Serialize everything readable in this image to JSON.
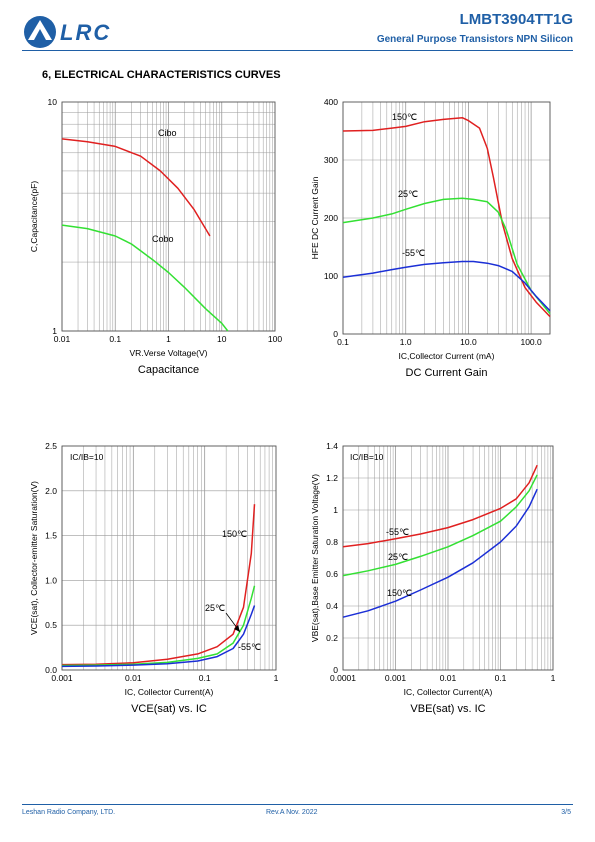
{
  "header": {
    "logo_text": "LRC",
    "part_number": "LMBT3904TT1G",
    "subtitle": "General Purpose Transistors NPN Silicon"
  },
  "section_title": "6, ELECTRICAL CHARACTERISTICS CURVES",
  "footer": {
    "company": "Leshan Radio Company, LTD.",
    "revision": "Rev.A   Nov.  2022",
    "page": "3/5"
  },
  "colors": {
    "brand": "#1f5fa6",
    "red": "#e02020",
    "green": "#33e033",
    "blue": "#1b2fd6"
  },
  "chart_data": [
    {
      "type": "line",
      "caption": "Capacitance",
      "xlabel": "VR.Verse Voltage(V)",
      "ylabel": "C,Capacitance(pF)",
      "xscale": "log",
      "yscale": "log",
      "xlim": [
        0.01,
        100
      ],
      "ylim": [
        1,
        10
      ],
      "xticks": [
        "0.01",
        "0.1",
        "1",
        "10",
        "100"
      ],
      "yticks": [
        "1",
        "10"
      ],
      "series": [
        {
          "name": "Cibo",
          "color": "red",
          "x": [
            0.01,
            0.03,
            0.1,
            0.3,
            0.7,
            1.5,
            3,
            6
          ],
          "y": [
            6.9,
            6.7,
            6.4,
            5.8,
            5.0,
            4.2,
            3.4,
            2.6
          ]
        },
        {
          "name": "Cobo",
          "color": "green",
          "x": [
            0.01,
            0.03,
            0.1,
            0.2,
            0.5,
            1,
            2,
            5,
            10,
            13
          ],
          "y": [
            2.9,
            2.8,
            2.6,
            2.4,
            2.05,
            1.8,
            1.55,
            1.25,
            1.08,
            1.0
          ]
        }
      ]
    },
    {
      "type": "line",
      "caption": "DC Current Gain",
      "xlabel": "IC,Collector Current (mA)",
      "ylabel": "HFE DC Current Gain",
      "xscale": "log",
      "yscale": "linear",
      "xlim": [
        0.1,
        200
      ],
      "ylim": [
        0,
        400
      ],
      "xticks": [
        "0.1",
        "1.0",
        "10.0",
        "100.0"
      ],
      "yticks": [
        "0",
        "100",
        "200",
        "300",
        "400"
      ],
      "series": [
        {
          "name": "150℃",
          "color": "red",
          "x": [
            0.1,
            0.3,
            0.6,
            1,
            2,
            4,
            8,
            10,
            15,
            20,
            25,
            35,
            50,
            80,
            120,
            200
          ],
          "y": [
            350,
            351,
            355,
            358,
            366,
            370,
            373,
            368,
            355,
            320,
            270,
            190,
            130,
            80,
            55,
            30
          ]
        },
        {
          "name": "25℃",
          "color": "green",
          "x": [
            0.1,
            0.3,
            0.6,
            1,
            2,
            4,
            8,
            12,
            20,
            30,
            40,
            60,
            100,
            200
          ],
          "y": [
            192,
            200,
            207,
            215,
            225,
            232,
            234,
            232,
            228,
            210,
            180,
            120,
            75,
            35
          ]
        },
        {
          "name": "-55℃",
          "color": "blue",
          "x": [
            0.1,
            0.3,
            0.6,
            1,
            2,
            4,
            8,
            12,
            20,
            30,
            50,
            80,
            120,
            200
          ],
          "y": [
            98,
            105,
            111,
            115,
            120,
            123,
            125,
            125,
            122,
            118,
            108,
            88,
            65,
            40
          ]
        }
      ]
    },
    {
      "type": "line",
      "caption": "VCE(sat) vs. IC",
      "xlabel": "IC, Collector Current(A)",
      "ylabel": "VCE(sat), Collector-emitter Saturation(V)",
      "annotation": "IC/IB=10",
      "xscale": "log",
      "yscale": "linear",
      "xlim": [
        0.001,
        1
      ],
      "ylim": [
        0,
        2.5
      ],
      "xticks": [
        "0.001",
        "0.01",
        "0.1",
        "1"
      ],
      "yticks": [
        "0.0",
        "0.5",
        "1.0",
        "1.5",
        "2.0",
        "2.5"
      ],
      "series": [
        {
          "name": "150℃",
          "color": "red",
          "x": [
            0.001,
            0.003,
            0.01,
            0.03,
            0.08,
            0.15,
            0.25,
            0.35,
            0.45,
            0.5
          ],
          "y": [
            0.06,
            0.065,
            0.08,
            0.12,
            0.18,
            0.26,
            0.4,
            0.7,
            1.3,
            1.85
          ]
        },
        {
          "name": "25℃",
          "color": "green",
          "x": [
            0.001,
            0.003,
            0.01,
            0.03,
            0.08,
            0.15,
            0.25,
            0.35,
            0.45,
            0.5
          ],
          "y": [
            0.05,
            0.055,
            0.065,
            0.085,
            0.13,
            0.18,
            0.3,
            0.5,
            0.8,
            0.94
          ]
        },
        {
          "name": "-55℃",
          "color": "blue",
          "x": [
            0.001,
            0.003,
            0.01,
            0.03,
            0.08,
            0.15,
            0.25,
            0.35,
            0.45,
            0.5
          ],
          "y": [
            0.04,
            0.045,
            0.055,
            0.07,
            0.1,
            0.15,
            0.24,
            0.4,
            0.62,
            0.72
          ]
        }
      ]
    },
    {
      "type": "line",
      "caption": "VBE(sat) vs. IC",
      "xlabel": "IC, Collector Current(A)",
      "ylabel": "VBE(sat),Base Emitter Saturation Voltage(V)",
      "annotation": "IC/IB=10",
      "xscale": "log",
      "yscale": "linear",
      "xlim": [
        0.0001,
        1
      ],
      "ylim": [
        0,
        1.4
      ],
      "xticks": [
        "0.0001",
        "0.001",
        "0.01",
        "0.1",
        "1"
      ],
      "yticks": [
        "0",
        "0.2",
        "0.4",
        "0.6",
        "0.8",
        "1",
        "1.2",
        "1.4"
      ],
      "series": [
        {
          "name": "-55℃",
          "color": "red",
          "x": [
            0.0001,
            0.0003,
            0.001,
            0.003,
            0.01,
            0.03,
            0.1,
            0.2,
            0.35,
            0.5
          ],
          "y": [
            0.77,
            0.79,
            0.82,
            0.85,
            0.89,
            0.94,
            1.01,
            1.07,
            1.17,
            1.28
          ]
        },
        {
          "name": "25℃",
          "color": "green",
          "x": [
            0.0001,
            0.0003,
            0.001,
            0.003,
            0.01,
            0.03,
            0.1,
            0.2,
            0.35,
            0.5
          ],
          "y": [
            0.59,
            0.62,
            0.66,
            0.71,
            0.77,
            0.84,
            0.93,
            1.02,
            1.12,
            1.22
          ]
        },
        {
          "name": "150℃",
          "color": "blue",
          "x": [
            0.0001,
            0.0003,
            0.001,
            0.003,
            0.01,
            0.03,
            0.1,
            0.2,
            0.35,
            0.5
          ],
          "y": [
            0.33,
            0.37,
            0.43,
            0.5,
            0.58,
            0.67,
            0.8,
            0.9,
            1.02,
            1.13
          ]
        }
      ]
    }
  ]
}
